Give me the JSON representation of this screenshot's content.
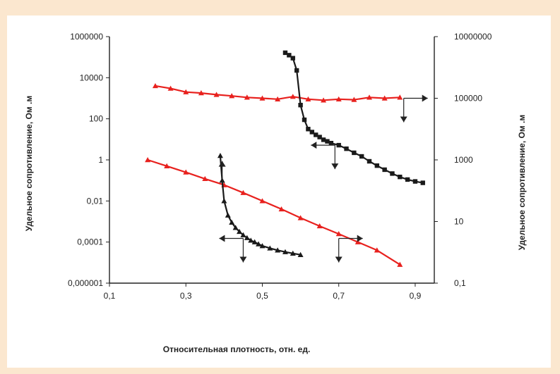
{
  "colors": {
    "background": "#fbe7cf",
    "red_series": "#e8211e",
    "black_series": "#1a1a1a",
    "axes": "#222222"
  },
  "chart_data": {
    "type": "scatter",
    "title": "",
    "xlabel": "Относительная плотность, отн. ед.",
    "ylabel_left": "Удельное сопротивление, Ом .м",
    "ylabel_right": "Удельное сопротивление, Ом .м",
    "x_scale": "linear",
    "y_left_scale": "log",
    "y_right_scale": "log",
    "xlim": [
      0.1,
      0.95
    ],
    "ylim_left": [
      1e-06,
      1000000
    ],
    "ylim_right": [
      0.1,
      10000000
    ],
    "x_ticks": [
      "0,1",
      "0,3",
      "0,5",
      "0,7",
      "0,9"
    ],
    "y_left_ticks": [
      "0,000001",
      "0,0001",
      "0,01",
      "1",
      "100",
      "10000",
      "1000000"
    ],
    "y_right_ticks": [
      "0,1",
      "10",
      "1000",
      "100000",
      "10000000"
    ],
    "grid": false,
    "legend": false,
    "series": [
      {
        "axis": "left",
        "color": "#e8211e",
        "marker": "triangle",
        "x": [
          0.22,
          0.26,
          0.3,
          0.34,
          0.38,
          0.42,
          0.46,
          0.5,
          0.54,
          0.58,
          0.62,
          0.66,
          0.7,
          0.74,
          0.78,
          0.82,
          0.86
        ],
        "y": [
          4000,
          3000,
          2000,
          1800,
          1500,
          1300,
          1100,
          1000,
          900,
          1200,
          900,
          800,
          900,
          850,
          1100,
          1000,
          1100
        ]
      },
      {
        "axis": "left",
        "color": "#e8211e",
        "marker": "triangle",
        "x": [
          0.2,
          0.25,
          0.3,
          0.35,
          0.4,
          0.45,
          0.5,
          0.55,
          0.6,
          0.65,
          0.7,
          0.75,
          0.8,
          0.86
        ],
        "y": [
          1.0,
          0.5,
          0.25,
          0.12,
          0.06,
          0.025,
          0.01,
          0.004,
          0.0015,
          0.0006,
          0.00025,
          0.0001,
          4e-05,
          8e-06
        ]
      },
      {
        "axis": "left",
        "color": "#1a1a1a",
        "marker": "triangle",
        "x": [
          0.39,
          0.395,
          0.4,
          0.41,
          0.42,
          0.43,
          0.44,
          0.45,
          0.46,
          0.47,
          0.48,
          0.49,
          0.5,
          0.52,
          0.54,
          0.56,
          0.58,
          0.6
        ],
        "y": [
          1.6,
          0.1,
          0.01,
          0.002,
          0.0009,
          0.0005,
          0.00032,
          0.00022,
          0.00016,
          0.00012,
          0.0001,
          8e-05,
          6.5e-05,
          5e-05,
          4e-05,
          3.3e-05,
          2.8e-05,
          2.4e-05
        ]
      },
      {
        "axis": "right",
        "color": "#1a1a1a",
        "marker": "square",
        "x": [
          0.56,
          0.57,
          0.58,
          0.59,
          0.6,
          0.61,
          0.62,
          0.63,
          0.64,
          0.65,
          0.66,
          0.67,
          0.68,
          0.7,
          0.72,
          0.74,
          0.76,
          0.78,
          0.8,
          0.82,
          0.84,
          0.86,
          0.88,
          0.9,
          0.92
        ],
        "y": [
          3000000,
          2500000,
          2000000,
          800000,
          60000,
          20000,
          10000,
          8000,
          6500,
          5500,
          4500,
          4000,
          3500,
          3000,
          2300,
          1700,
          1300,
          900,
          650,
          480,
          360,
          280,
          230,
          200,
          180
        ]
      }
    ],
    "annotations": [
      {
        "type": "double-arrow-corner",
        "x": 0.87,
        "y_right": 100000,
        "axis": "right",
        "horizontal": "right",
        "vertical": "down"
      },
      {
        "type": "double-arrow-corner",
        "x": 0.69,
        "y_right": 3000,
        "axis": "right",
        "horizontal": "left",
        "vertical": "down"
      },
      {
        "type": "double-arrow-corner",
        "x": 0.395,
        "y_left": 0.06,
        "axis": "left",
        "horizontal": "none",
        "vertical": "up"
      },
      {
        "type": "double-arrow-corner",
        "x": 0.45,
        "y_left": 0.00015,
        "axis": "left",
        "horizontal": "left",
        "vertical": "down"
      },
      {
        "type": "double-arrow-corner",
        "x": 0.7,
        "y_left": 0.00015,
        "axis": "left",
        "horizontal": "right",
        "vertical": "down"
      }
    ]
  }
}
